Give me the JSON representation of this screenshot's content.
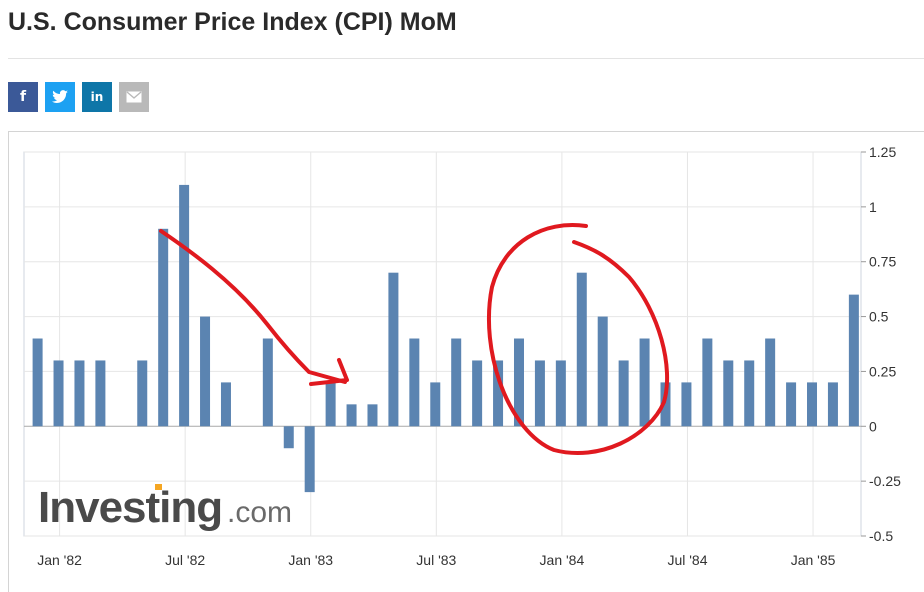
{
  "page": {
    "title": "U.S. Consumer Price Index (CPI) MoM"
  },
  "share": [
    {
      "icon": "facebook-icon",
      "glyph": "f",
      "color": "#3b5998"
    },
    {
      "icon": "twitter-icon",
      "glyph": "t",
      "color": "#1da1f2"
    },
    {
      "icon": "linkedin-icon",
      "glyph": "in",
      "color": "#0e76a8"
    },
    {
      "icon": "email-icon",
      "glyph": "✉",
      "color": "#b9b9b9"
    }
  ],
  "watermark": {
    "brand": "Investing",
    "suffix": ".com"
  },
  "chart_data": {
    "type": "bar",
    "title": "",
    "xlabel": "",
    "ylabel": "",
    "ylim": [
      -0.5,
      1.25
    ],
    "yticks": [
      1.25,
      1,
      0.75,
      0.5,
      0.25,
      0,
      -0.25,
      -0.5
    ],
    "ytick_labels": [
      "1.25",
      "1",
      "0.75",
      "0.5",
      "0.25",
      "0",
      "-0.25",
      "-0.5"
    ],
    "x_tick_labels": [
      "Jan '82",
      "Jul '82",
      "Jan '83",
      "Jul '83",
      "Jan '84",
      "Jul '84",
      "Jan '85"
    ],
    "categories": [
      "Jan '82",
      "Feb '82",
      "Mar '82",
      "Apr '82",
      "May '82",
      "Jun '82",
      "Jul '82",
      "Aug '82",
      "Sep '82",
      "Oct '82",
      "Nov '82",
      "Dec '82",
      "Jan '83",
      "Feb '83",
      "Mar '83",
      "Apr '83",
      "May '83",
      "Jun '83",
      "Jul '83",
      "Aug '83",
      "Sep '83",
      "Oct '83",
      "Nov '83",
      "Dec '83",
      "Jan '84",
      "Feb '84",
      "Mar '84",
      "Apr '84",
      "May '84",
      "Jun '84",
      "Jul '84",
      "Aug '84",
      "Sep '84",
      "Oct '84",
      "Nov '84",
      "Dec '84",
      "Jan '85",
      "Feb '85",
      "Mar '85",
      "Apr '85"
    ],
    "values": [
      0.4,
      0.3,
      0.3,
      0.3,
      0,
      0.3,
      0.9,
      1.1,
      0.5,
      0.2,
      0,
      0.4,
      -0.1,
      -0.3,
      0.2,
      0.1,
      0.1,
      0.7,
      0.4,
      0.2,
      0.4,
      0.3,
      0.3,
      0.4,
      0.3,
      0.3,
      0.7,
      0.5,
      0.3,
      0.4,
      0.2,
      0.2,
      0.4,
      0.3,
      0.3,
      0.4,
      0.2,
      0.2,
      0.2,
      0.6
    ],
    "bar_color": "#5b84b1",
    "grid": true,
    "annotation_color": "#e0191f"
  }
}
